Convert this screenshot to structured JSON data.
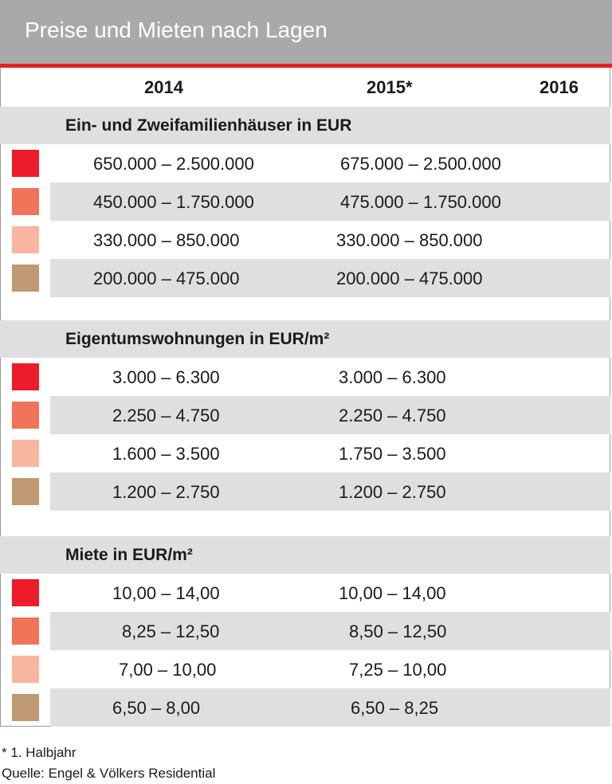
{
  "title": "Preise und Mieten nach Lagen",
  "columns": [
    "2014",
    "2015*",
    "2016"
  ],
  "colors": {
    "title_bar": "#a9a9ab",
    "accent_line": "#e5202a",
    "band": "#dfdfe1",
    "tier_colors": [
      "#ed1c2b",
      "#f0735a",
      "#f8b5a0",
      "#bf9972"
    ]
  },
  "sections": [
    {
      "heading": "Ein- und Zweifamilienhäuser in EUR",
      "rows": [
        {
          "v2014": "650.000 – 2.500.000",
          "v2015": "675.000 – 2.500.000"
        },
        {
          "v2014": "450.000 – 1.750.000",
          "v2015": "475.000 – 1.750.000"
        },
        {
          "v2014": "330.000 – 850.000",
          "v2015": "330.000 – 850.000"
        },
        {
          "v2014": "200.000 – 475.000",
          "v2015": "200.000 – 475.000"
        }
      ]
    },
    {
      "heading": "Eigentumswohnungen in EUR/m²",
      "rows": [
        {
          "v2014": "3.000 – 6.300",
          "v2015": "3.000 – 6.300"
        },
        {
          "v2014": "2.250 – 4.750",
          "v2015": "2.250 – 4.750"
        },
        {
          "v2014": "1.600 – 3.500",
          "v2015": "1.750 – 3.500"
        },
        {
          "v2014": "1.200 – 2.750",
          "v2015": "1.200 – 2.750"
        }
      ]
    },
    {
      "heading": "Miete in EUR/m²",
      "rows": [
        {
          "v2014": "10,00 – 14,00",
          "v2015": "10,00 – 14,00"
        },
        {
          "v2014": "8,25 – 12,50",
          "v2015": "8,50 – 12,50"
        },
        {
          "v2014": "7,00 – 10,00",
          "v2015": "7,25 – 10,00"
        },
        {
          "v2014": "6,50 – 8,00",
          "v2015": "6,50 – 8,25"
        }
      ]
    }
  ],
  "footnotes": [
    "* 1. Halbjahr",
    "Quelle: Engel & Völkers Residential"
  ]
}
